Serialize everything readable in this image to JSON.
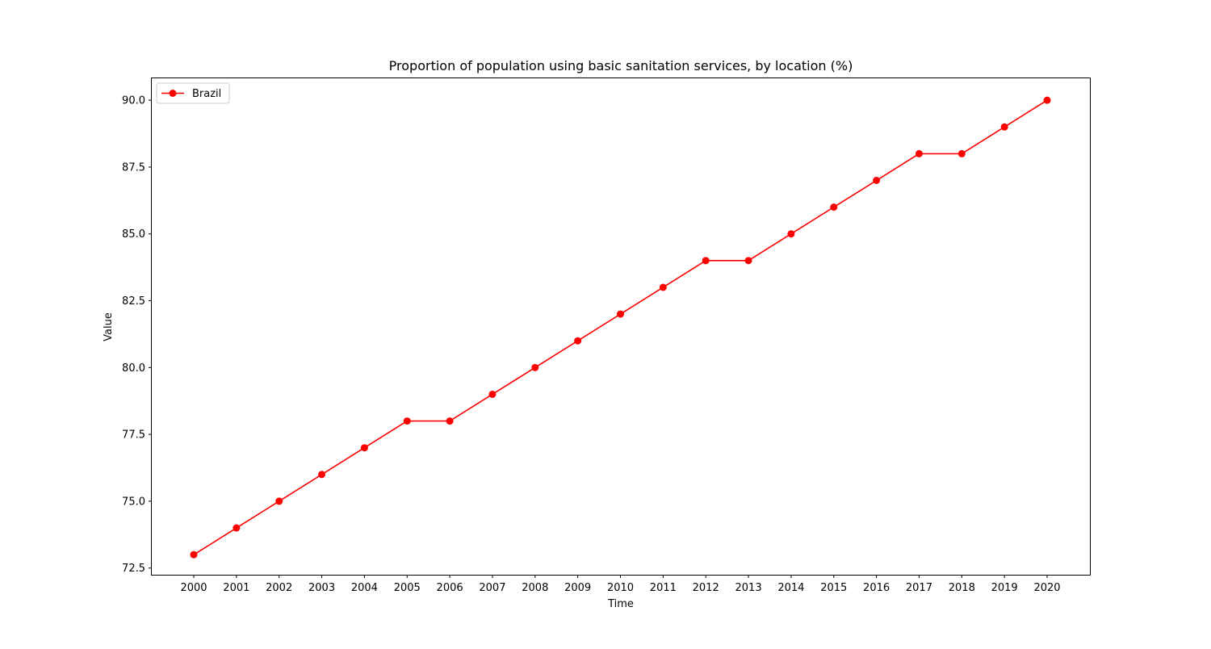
{
  "chart_data": {
    "type": "line",
    "title": "Proportion of population using basic sanitation services, by location (%)",
    "xlabel": "Time",
    "ylabel": "Value",
    "categories": [
      "2000",
      "2001",
      "2002",
      "2003",
      "2004",
      "2005",
      "2006",
      "2007",
      "2008",
      "2009",
      "2010",
      "2011",
      "2012",
      "2013",
      "2014",
      "2015",
      "2016",
      "2017",
      "2018",
      "2019",
      "2020"
    ],
    "series": [
      {
        "name": "Brazil",
        "color": "#ff0000",
        "marker": "circle",
        "values": [
          73,
          74,
          75,
          76,
          77,
          78,
          78,
          79,
          80,
          81,
          82,
          83,
          84,
          84,
          85,
          86,
          87,
          88,
          88,
          89,
          90
        ]
      }
    ],
    "ylim": [
      72.25,
      90.85
    ],
    "yticks": [
      72.5,
      75.0,
      77.5,
      80.0,
      82.5,
      85.0,
      87.5,
      90.0
    ],
    "ytick_labels": [
      "72.5",
      "75.0",
      "77.5",
      "80.0",
      "82.5",
      "85.0",
      "87.5",
      "90.0"
    ],
    "grid": false,
    "legend_position": "top-left"
  }
}
